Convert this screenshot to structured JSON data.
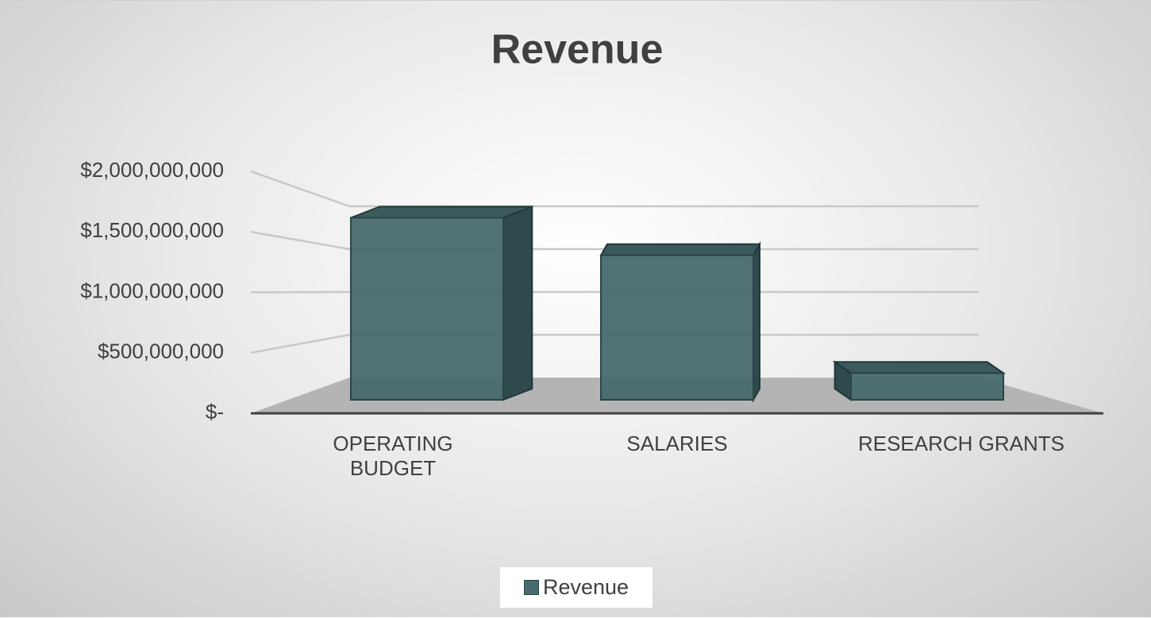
{
  "chart_data": {
    "type": "bar3d",
    "title": "Revenue",
    "categories": [
      "OPERATING BUDGET",
      "SALARIES",
      "RESEARCH GRANTS"
    ],
    "series": [
      {
        "name": "Revenue",
        "color": "#476a6d",
        "values": [
          1700000000,
          1350000000,
          250000000
        ]
      }
    ],
    "ylim": [
      0,
      2000000000
    ],
    "yticks": [
      {
        "value": 0,
        "label": "$-"
      },
      {
        "value": 500000000,
        "label": "$500,000,000"
      },
      {
        "value": 1000000000,
        "label": "$1,000,000,000"
      },
      {
        "value": 1500000000,
        "label": "$1,500,000,000"
      },
      {
        "value": 2000000000,
        "label": "$2,000,000,000"
      }
    ],
    "grid": true,
    "legend": "bottom"
  }
}
